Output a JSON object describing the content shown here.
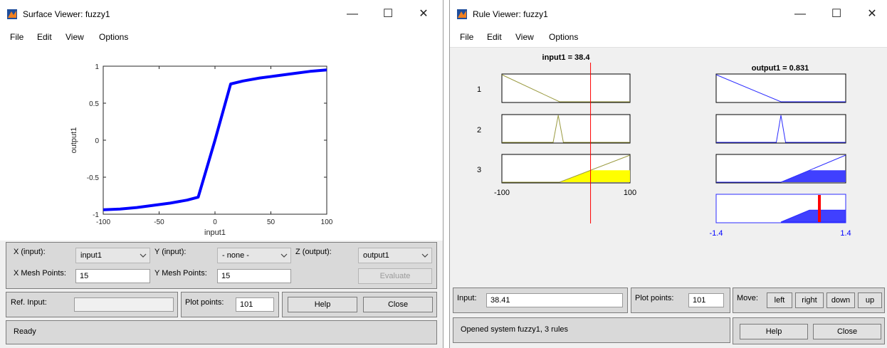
{
  "surface_viewer": {
    "title": "Surface Viewer: fuzzy1",
    "menu": [
      "File",
      "Edit",
      "View",
      "Options"
    ],
    "window_controls": [
      "—",
      "☐",
      "✕"
    ],
    "controls": {
      "x_label": "X (input):",
      "x_value": "input1",
      "y_label": "Y (input):",
      "y_value": "- none -",
      "z_label": "Z (output):",
      "z_value": "output1",
      "x_mesh_label": "X Mesh Points:",
      "x_mesh_value": "15",
      "y_mesh_label": "Y Mesh Points:",
      "y_mesh_value": "15",
      "evaluate": "Evaluate",
      "ref_input_label": "Ref. Input:",
      "ref_input_value": "",
      "plot_points_label": "Plot points:",
      "plot_points_value": "101",
      "help": "Help",
      "close": "Close"
    },
    "status": "Ready"
  },
  "rule_viewer": {
    "title": "Rule Viewer: fuzzy1",
    "menu": [
      "File",
      "Edit",
      "View",
      "Options"
    ],
    "window_controls": [
      "—",
      "☐",
      "✕"
    ],
    "input_header": "input1 = 38.4",
    "output_header": "output1 = 0.831",
    "rule_numbers": [
      "1",
      "2",
      "3"
    ],
    "input_range": {
      "min": -100,
      "max": 100,
      "min_label": "-100",
      "max_label": "100"
    },
    "output_range": {
      "min": -1.4,
      "max": 1.4,
      "min_label": "-1.4",
      "max_label": "1.4"
    },
    "input_value": 38.4,
    "output_value": 0.831,
    "controls": {
      "input_label": "Input:",
      "input_value": "38.41",
      "plot_points_label": "Plot points:",
      "plot_points_value": "101",
      "move_label": "Move:",
      "left": "left",
      "right": "right",
      "down": "down",
      "up": "up",
      "help": "Help",
      "close": "Close"
    },
    "status": "Opened system fuzzy1, 3 rules"
  },
  "chart_data": {
    "type": "line",
    "title": "",
    "xlabel": "input1",
    "ylabel": "output1",
    "xlim": [
      -100,
      100
    ],
    "ylim": [
      -1,
      1
    ],
    "xticks": [
      -100,
      -50,
      0,
      50,
      100
    ],
    "yticks": [
      -1,
      -0.5,
      0,
      0.5,
      1
    ],
    "grid": false,
    "color": "#0000ff",
    "series": [
      {
        "x": [
          -100,
          -85,
          -70,
          -55,
          -40,
          -25,
          -15,
          0,
          14,
          25,
          40,
          55,
          70,
          85,
          100
        ],
        "y": [
          -0.94,
          -0.93,
          -0.91,
          -0.88,
          -0.85,
          -0.81,
          -0.77,
          0.0,
          0.76,
          0.8,
          0.84,
          0.87,
          0.9,
          0.93,
          0.95
        ]
      }
    ]
  },
  "colors": {
    "window_bg": "#f0f0f0",
    "panel_bg": "#d9d9d9",
    "curve": "#0000ff",
    "input_mf": "#9a9a40",
    "output_mf": "#2b2bff",
    "implication_fill": "#ffff00",
    "output_fill": "#4040ff",
    "marker": "#ff0000"
  }
}
